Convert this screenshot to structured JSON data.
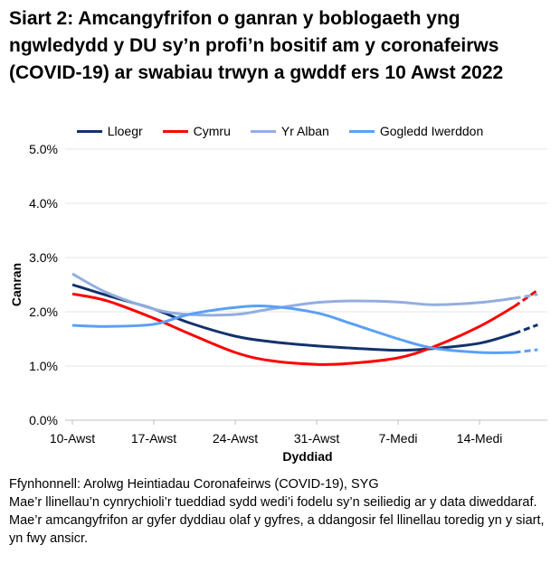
{
  "title": "Siart 2: Amcangyfrifon o ganran y boblogaeth yng ngwledydd y DU sy’n profi’n bositif am y coronafeirws (COVID-19) ar swabiau trwyn a gwddf ers 10 Awst 2022",
  "chart_data": {
    "type": "line",
    "xlabel": "Dyddiad",
    "ylabel": "Canran",
    "ylim": [
      0,
      5
    ],
    "yticks": [
      "0.0%",
      "1.0%",
      "2.0%",
      "3.0%",
      "4.0%",
      "5.0%"
    ],
    "xticks": [
      {
        "day": 0,
        "label": "10-Awst"
      },
      {
        "day": 7,
        "label": "17-Awst"
      },
      {
        "day": 14,
        "label": "24-Awst"
      },
      {
        "day": 21,
        "label": "31-Awst"
      },
      {
        "day": 28,
        "label": "7-Medi"
      },
      {
        "day": 35,
        "label": "14-Medi"
      }
    ],
    "x_days_since_10_Aug": [
      0,
      3,
      7,
      10,
      14,
      17,
      21,
      24,
      28,
      31,
      35,
      38,
      40
    ],
    "modelled_from_day": 38,
    "legend_position": "top",
    "series": [
      {
        "name": "Lloegr",
        "color": "#12326b",
        "values": [
          2.5,
          2.3,
          2.05,
          1.8,
          1.55,
          1.45,
          1.37,
          1.33,
          1.29,
          1.32,
          1.42,
          1.6,
          1.76
        ]
      },
      {
        "name": "Cymru",
        "color": "#ff0000",
        "values": [
          2.33,
          2.2,
          1.88,
          1.6,
          1.25,
          1.1,
          1.03,
          1.05,
          1.15,
          1.35,
          1.73,
          2.1,
          2.4
        ]
      },
      {
        "name": "Yr Alban",
        "color": "#92aee0",
        "values": [
          2.7,
          2.35,
          2.05,
          1.95,
          1.95,
          2.05,
          2.17,
          2.2,
          2.18,
          2.13,
          2.17,
          2.25,
          2.32
        ]
      },
      {
        "name": "Gogledd Iwerddon",
        "color": "#5aa0f5",
        "values": [
          1.75,
          1.73,
          1.77,
          1.95,
          2.08,
          2.1,
          1.98,
          1.78,
          1.5,
          1.33,
          1.25,
          1.25,
          1.3
        ]
      }
    ]
  },
  "footer": {
    "source": "Ffynhonnell: Arolwg Heintiadau Coronafeirws (COVID-19), SYG",
    "note": "Mae’r llinellau’n cynrychioli’r tueddiad sydd wedi’i fodelu sy’n seiliedig ar y data diweddaraf. Mae’r amcangyfrifon ar gyfer dyddiau olaf y gyfres, a ddangosir fel llinellau toredig yn y siart, yn fwy ansicr."
  }
}
